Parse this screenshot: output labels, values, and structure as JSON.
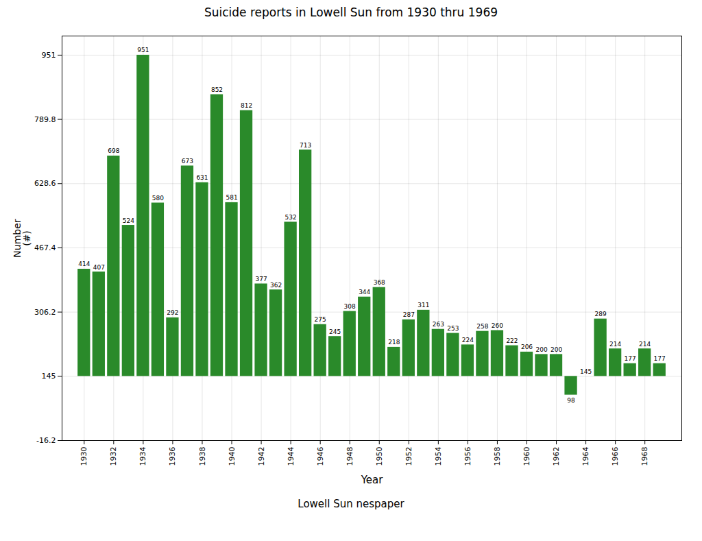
{
  "chart_data": {
    "type": "bar",
    "title": "Suicide reports in Lowell Sun from 1930 thru 1969",
    "xlabel": "Year",
    "ylabel": "Number\n(#)",
    "annotation": "Lowell Sun nespaper",
    "x": [
      1930,
      1931,
      1932,
      1933,
      1934,
      1935,
      1936,
      1937,
      1938,
      1939,
      1940,
      1941,
      1942,
      1943,
      1944,
      1945,
      1946,
      1947,
      1948,
      1949,
      1950,
      1951,
      1952,
      1953,
      1954,
      1955,
      1956,
      1957,
      1958,
      1959,
      1960,
      1961,
      1962,
      1963,
      1964,
      1965,
      1966,
      1967,
      1968,
      1969
    ],
    "values": [
      414,
      407,
      698,
      524,
      951,
      580,
      292,
      673,
      631,
      852,
      581,
      812,
      377,
      362,
      532,
      713,
      275,
      245,
      308,
      344,
      368,
      218,
      287,
      311,
      263,
      253,
      224,
      258,
      260,
      222,
      206,
      200,
      200,
      98,
      145,
      289,
      214,
      177,
      214,
      177
    ],
    "color": "#2a8a2a",
    "baseline": 145,
    "xlim": [
      1928.5,
      1970.5
    ],
    "xticks": [
      1930,
      1932,
      1934,
      1936,
      1938,
      1940,
      1942,
      1944,
      1946,
      1948,
      1950,
      1952,
      1954,
      1956,
      1958,
      1960,
      1962,
      1964,
      1966,
      1968
    ],
    "ylim": [
      -16.2,
      999
    ],
    "yticks": [
      -16.2,
      145,
      306.2,
      467.4,
      628.6,
      789.8,
      951
    ],
    "grid": true,
    "data_labels": true
  }
}
